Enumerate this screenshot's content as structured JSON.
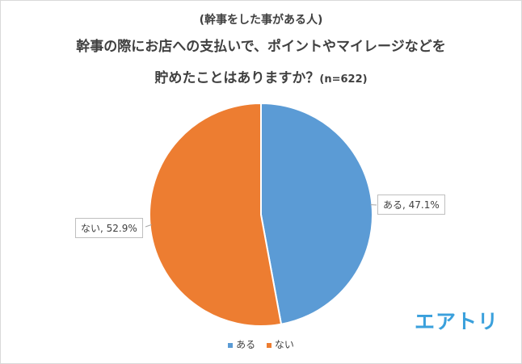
{
  "chart_data": {
    "type": "pie",
    "subtitle": "(幹事をした事がある人)",
    "title_line1": "幹事の際にお店への支払いで、ポイントやマイレージなどを",
    "title_line2": "貯めたことはありますか？",
    "title_n": "(n=622)",
    "slices": [
      {
        "label": "ある",
        "value": 47.1,
        "display": "ある, 47.1%",
        "color": "#5b9bd5"
      },
      {
        "label": "ない",
        "value": 52.9,
        "display": "ない, 52.9%",
        "color": "#ed7d31"
      }
    ],
    "legend": [
      "ある",
      "ない"
    ],
    "legend_position": "bottom"
  },
  "logo_text": "エアトリ"
}
